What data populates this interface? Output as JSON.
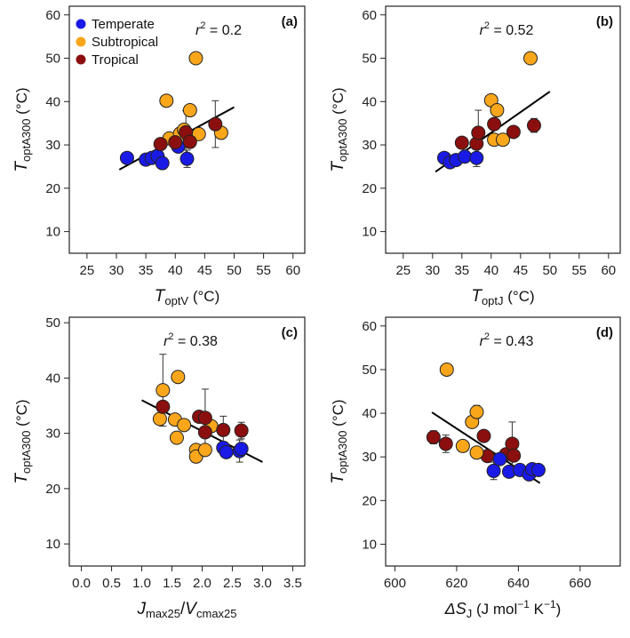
{
  "colors": {
    "temperate": "#1a1ae6",
    "subtropical": "#f9a61b",
    "tropical": "#8b0f0f",
    "axis": "#222222",
    "fit": "#000000"
  },
  "legend": [
    {
      "key": "temperate",
      "label": "Temperate"
    },
    {
      "key": "subtropical",
      "label": "Subtropical"
    },
    {
      "key": "tropical",
      "label": "Tropical"
    }
  ],
  "chart_data": [
    {
      "id": "a",
      "panel_label": "(a)",
      "type": "scatter",
      "r2_label": "r",
      "r2_value": "= 0.2",
      "xlabel_main": "T",
      "xlabel_sub": "optV",
      "xlabel_unit": "(°C)",
      "ylabel_main": "T",
      "ylabel_sub": "optA300",
      "ylabel_unit": "(°C)",
      "xlim": [
        22,
        62
      ],
      "ylim": [
        5,
        62
      ],
      "xticks": [
        25,
        30,
        35,
        40,
        45,
        50,
        55,
        60
      ],
      "xtick_labels": [
        "25",
        "30",
        "35",
        "40",
        "45",
        "50",
        "55",
        "60"
      ],
      "yticks": [
        10,
        20,
        30,
        40,
        50,
        60
      ],
      "ytick_labels": [
        "10",
        "20",
        "30",
        "40",
        "50",
        "60"
      ],
      "fit": [
        [
          30.5,
          24.3
        ],
        [
          50.0,
          38.7
        ]
      ],
      "points": [
        {
          "x": 31.8,
          "y": 27.0,
          "g": "temperate"
        },
        {
          "x": 35.0,
          "y": 26.6,
          "g": "temperate"
        },
        {
          "x": 36.0,
          "y": 27.0,
          "g": "temperate",
          "err": 1.2
        },
        {
          "x": 37.0,
          "y": 27.4,
          "g": "temperate"
        },
        {
          "x": 37.8,
          "y": 25.8,
          "g": "temperate"
        },
        {
          "x": 40.5,
          "y": 29.6,
          "g": "temperate"
        },
        {
          "x": 42.0,
          "y": 26.8,
          "g": "temperate",
          "err": 2.0
        },
        {
          "x": 38.5,
          "y": 40.2,
          "g": "subtropical"
        },
        {
          "x": 39.0,
          "y": 31.5,
          "g": "subtropical"
        },
        {
          "x": 40.8,
          "y": 32.6,
          "g": "subtropical"
        },
        {
          "x": 42.5,
          "y": 38.0,
          "g": "subtropical"
        },
        {
          "x": 43.5,
          "y": 50.0,
          "g": "subtropical"
        },
        {
          "x": 44.0,
          "y": 32.5,
          "g": "subtropical"
        },
        {
          "x": 47.8,
          "y": 32.8,
          "g": "subtropical"
        },
        {
          "x": 41.5,
          "y": 33.5,
          "g": "subtropical"
        },
        {
          "x": 37.5,
          "y": 30.2,
          "g": "tropical"
        },
        {
          "x": 40.0,
          "y": 30.6,
          "g": "tropical"
        },
        {
          "x": 41.8,
          "y": 32.9,
          "g": "tropical",
          "err": 5.0
        },
        {
          "x": 42.5,
          "y": 30.7,
          "g": "tropical"
        },
        {
          "x": 46.8,
          "y": 34.8,
          "g": "tropical",
          "err": 5.4
        }
      ]
    },
    {
      "id": "b",
      "panel_label": "(b)",
      "type": "scatter",
      "r2_label": "r",
      "r2_value": "= 0.52",
      "xlabel_main": "T",
      "xlabel_sub": "optJ",
      "xlabel_unit": "(°C)",
      "ylabel_main": "T",
      "ylabel_sub": "optA300",
      "ylabel_unit": "(°C)",
      "xlim": [
        22,
        62
      ],
      "ylim": [
        5,
        62
      ],
      "xticks": [
        25,
        30,
        35,
        40,
        45,
        50,
        55,
        60
      ],
      "xtick_labels": [
        "25",
        "30",
        "35",
        "40",
        "45",
        "50",
        "55",
        "60"
      ],
      "yticks": [
        10,
        20,
        30,
        40,
        50,
        60
      ],
      "ytick_labels": [
        "10",
        "20",
        "30",
        "40",
        "50",
        "60"
      ],
      "fit": [
        [
          30.5,
          23.8
        ],
        [
          50.0,
          42.3
        ]
      ],
      "points": [
        {
          "x": 32.0,
          "y": 27.0,
          "g": "temperate"
        },
        {
          "x": 33.0,
          "y": 26.0,
          "g": "temperate"
        },
        {
          "x": 34.0,
          "y": 26.5,
          "g": "temperate"
        },
        {
          "x": 35.5,
          "y": 27.3,
          "g": "temperate"
        },
        {
          "x": 37.5,
          "y": 27.0,
          "g": "temperate",
          "err": 2.0
        },
        {
          "x": 40.0,
          "y": 40.3,
          "g": "subtropical"
        },
        {
          "x": 41.0,
          "y": 38.0,
          "g": "subtropical"
        },
        {
          "x": 40.5,
          "y": 31.2,
          "g": "subtropical"
        },
        {
          "x": 42.0,
          "y": 31.2,
          "g": "subtropical"
        },
        {
          "x": 46.7,
          "y": 50.0,
          "g": "subtropical"
        },
        {
          "x": 35.0,
          "y": 30.5,
          "g": "tropical"
        },
        {
          "x": 37.5,
          "y": 30.3,
          "g": "tropical"
        },
        {
          "x": 37.8,
          "y": 32.8,
          "g": "tropical",
          "err": 5.2
        },
        {
          "x": 40.5,
          "y": 34.8,
          "g": "tropical"
        },
        {
          "x": 43.8,
          "y": 33.0,
          "g": "tropical",
          "err": 1.3
        },
        {
          "x": 47.3,
          "y": 34.5,
          "g": "tropical",
          "err": 1.6
        }
      ]
    },
    {
      "id": "c",
      "panel_label": "(c)",
      "type": "scatter",
      "r2_label": "r",
      "r2_value": "= 0.38",
      "xlabel_main": "J",
      "xlabel_sub": "max25",
      "xlabel_sep": "/",
      "xlabel_main2": "V",
      "xlabel_sub2": "cmax25",
      "ylabel_main": "T",
      "ylabel_sub": "optA300",
      "ylabel_unit": "(°C)",
      "xlim": [
        -0.2,
        3.7
      ],
      "ylim": [
        6,
        51
      ],
      "xticks": [
        0.0,
        0.5,
        1.0,
        1.5,
        2.0,
        2.5,
        3.0,
        3.5
      ],
      "xtick_labels": [
        "0.0",
        "0.5",
        "1.0",
        "1.5",
        "2.0",
        "2.5",
        "3.0",
        "3.5"
      ],
      "yticks": [
        10,
        20,
        30,
        40,
        50
      ],
      "ytick_labels": [
        "10",
        "20",
        "30",
        "40",
        "50"
      ],
      "fit": [
        [
          1.0,
          36.0
        ],
        [
          3.0,
          24.8
        ]
      ],
      "points": [
        {
          "x": 1.3,
          "y": 32.6,
          "g": "subtropical"
        },
        {
          "x": 1.35,
          "y": 37.8,
          "g": "subtropical",
          "err": 6.5
        },
        {
          "x": 1.55,
          "y": 32.5,
          "g": "subtropical"
        },
        {
          "x": 1.6,
          "y": 40.2,
          "g": "subtropical"
        },
        {
          "x": 1.58,
          "y": 29.2,
          "g": "subtropical"
        },
        {
          "x": 1.7,
          "y": 31.5,
          "g": "subtropical"
        },
        {
          "x": 1.9,
          "y": 27.0,
          "g": "subtropical"
        },
        {
          "x": 1.9,
          "y": 25.8,
          "g": "subtropical"
        },
        {
          "x": 2.15,
          "y": 31.3,
          "g": "subtropical"
        },
        {
          "x": 2.05,
          "y": 27.0,
          "g": "subtropical"
        },
        {
          "x": 1.35,
          "y": 34.8,
          "g": "tropical"
        },
        {
          "x": 1.95,
          "y": 33.0,
          "g": "tropical"
        },
        {
          "x": 2.05,
          "y": 32.8,
          "g": "tropical",
          "err": 5.2
        },
        {
          "x": 2.05,
          "y": 30.2,
          "g": "tropical"
        },
        {
          "x": 2.35,
          "y": 30.6,
          "g": "tropical",
          "err": 2.5
        },
        {
          "x": 2.65,
          "y": 30.5,
          "g": "tropical",
          "err": 1.5
        },
        {
          "x": 2.35,
          "y": 27.4,
          "g": "temperate"
        },
        {
          "x": 2.4,
          "y": 26.6,
          "g": "temperate"
        },
        {
          "x": 2.62,
          "y": 26.8,
          "g": "temperate",
          "err": 2.0
        },
        {
          "x": 2.65,
          "y": 27.2,
          "g": "temperate"
        }
      ]
    },
    {
      "id": "d",
      "panel_label": "(d)",
      "type": "scatter",
      "r2_label": "r",
      "r2_value": "= 0.43",
      "xlabel_prefix": "ΔS",
      "xlabel_sub": "J",
      "xlabel_unit": "(J mol",
      "xlabel_unit_sup1": "−1",
      "xlabel_unit_mid": " K",
      "xlabel_unit_sup2": "−1",
      "xlabel_unit_end": ")",
      "ylabel_main": "T",
      "ylabel_sub": "optA300",
      "ylabel_unit": "(°C)",
      "xlim": [
        597,
        673
      ],
      "ylim": [
        5,
        62
      ],
      "xticks": [
        600,
        620,
        640,
        660
      ],
      "xtick_labels": [
        "600",
        "620",
        "640",
        "660"
      ],
      "yticks": [
        10,
        20,
        30,
        40,
        50,
        60
      ],
      "ytick_labels": [
        "10",
        "20",
        "30",
        "40",
        "50",
        "60"
      ],
      "fit": [
        [
          612.0,
          40.2
        ],
        [
          647.0,
          24.0
        ]
      ],
      "points": [
        {
          "x": 612.5,
          "y": 34.5,
          "g": "tropical",
          "err": 1.5
        },
        {
          "x": 616.5,
          "y": 33.0,
          "g": "tropical",
          "err": 2.0
        },
        {
          "x": 628.8,
          "y": 34.8,
          "g": "tropical"
        },
        {
          "x": 630.0,
          "y": 30.2,
          "g": "tropical"
        },
        {
          "x": 636.0,
          "y": 30.6,
          "g": "tropical"
        },
        {
          "x": 638.0,
          "y": 33.0,
          "g": "tropical",
          "err": 5.0
        },
        {
          "x": 638.5,
          "y": 30.3,
          "g": "tropical"
        },
        {
          "x": 616.8,
          "y": 50.0,
          "g": "subtropical"
        },
        {
          "x": 622.0,
          "y": 32.5,
          "g": "subtropical"
        },
        {
          "x": 625.0,
          "y": 38.0,
          "g": "subtropical"
        },
        {
          "x": 626.5,
          "y": 40.3,
          "g": "subtropical",
          "err": 1.5
        },
        {
          "x": 626.5,
          "y": 31.0,
          "g": "subtropical"
        },
        {
          "x": 632.0,
          "y": 26.8,
          "g": "temperate",
          "err": 2.0
        },
        {
          "x": 634.0,
          "y": 29.5,
          "g": "temperate"
        },
        {
          "x": 637.0,
          "y": 26.6,
          "g": "temperate"
        },
        {
          "x": 640.5,
          "y": 27.0,
          "g": "temperate"
        },
        {
          "x": 643.5,
          "y": 26.0,
          "g": "temperate"
        },
        {
          "x": 644.5,
          "y": 27.2,
          "g": "temperate"
        },
        {
          "x": 646.5,
          "y": 27.0,
          "g": "temperate"
        }
      ]
    }
  ]
}
